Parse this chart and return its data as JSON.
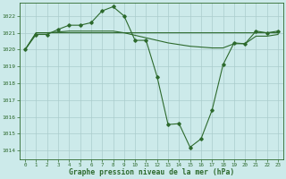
{
  "title": "Graphe pression niveau de la mer (hPa)",
  "background_color": "#cceaea",
  "grid_color": "#aacccc",
  "line_color": "#2d6a2d",
  "border_color": "#888888",
  "ylim": [
    1013.5,
    1022.8
  ],
  "xlim": [
    -0.5,
    23.5
  ],
  "yticks": [
    1014,
    1015,
    1016,
    1017,
    1018,
    1019,
    1020,
    1021,
    1022
  ],
  "xticks": [
    0,
    1,
    2,
    3,
    4,
    5,
    6,
    7,
    8,
    9,
    10,
    11,
    12,
    13,
    14,
    15,
    16,
    17,
    18,
    19,
    20,
    21,
    22,
    23
  ],
  "series1": [
    1020.0,
    1020.9,
    1020.9,
    1021.2,
    1021.45,
    1021.45,
    1021.6,
    1022.3,
    1022.55,
    1022.0,
    1020.55,
    1020.55,
    1018.4,
    1015.55,
    1015.6,
    1014.2,
    1014.7,
    1016.4,
    1019.1,
    1020.4,
    1020.35,
    1021.1,
    1021.0,
    1021.1
  ],
  "series2": [
    1020.0,
    1021.0,
    1021.0,
    1021.0,
    1021.0,
    1021.0,
    1021.0,
    1021.0,
    1021.0,
    1021.0,
    1021.0,
    1021.0,
    1021.0,
    1021.0,
    1021.0,
    1021.0,
    1021.0,
    1021.0,
    1021.0,
    1021.0,
    1021.0,
    1021.0,
    1021.0,
    1021.0
  ],
  "series3": [
    1020.0,
    1021.0,
    1021.0,
    1021.05,
    1021.1,
    1021.1,
    1021.1,
    1021.1,
    1021.1,
    1021.0,
    1020.85,
    1020.7,
    1020.55,
    1020.4,
    1020.3,
    1020.2,
    1020.15,
    1020.1,
    1020.1,
    1020.35,
    1020.35,
    1020.8,
    1020.8,
    1020.9
  ]
}
